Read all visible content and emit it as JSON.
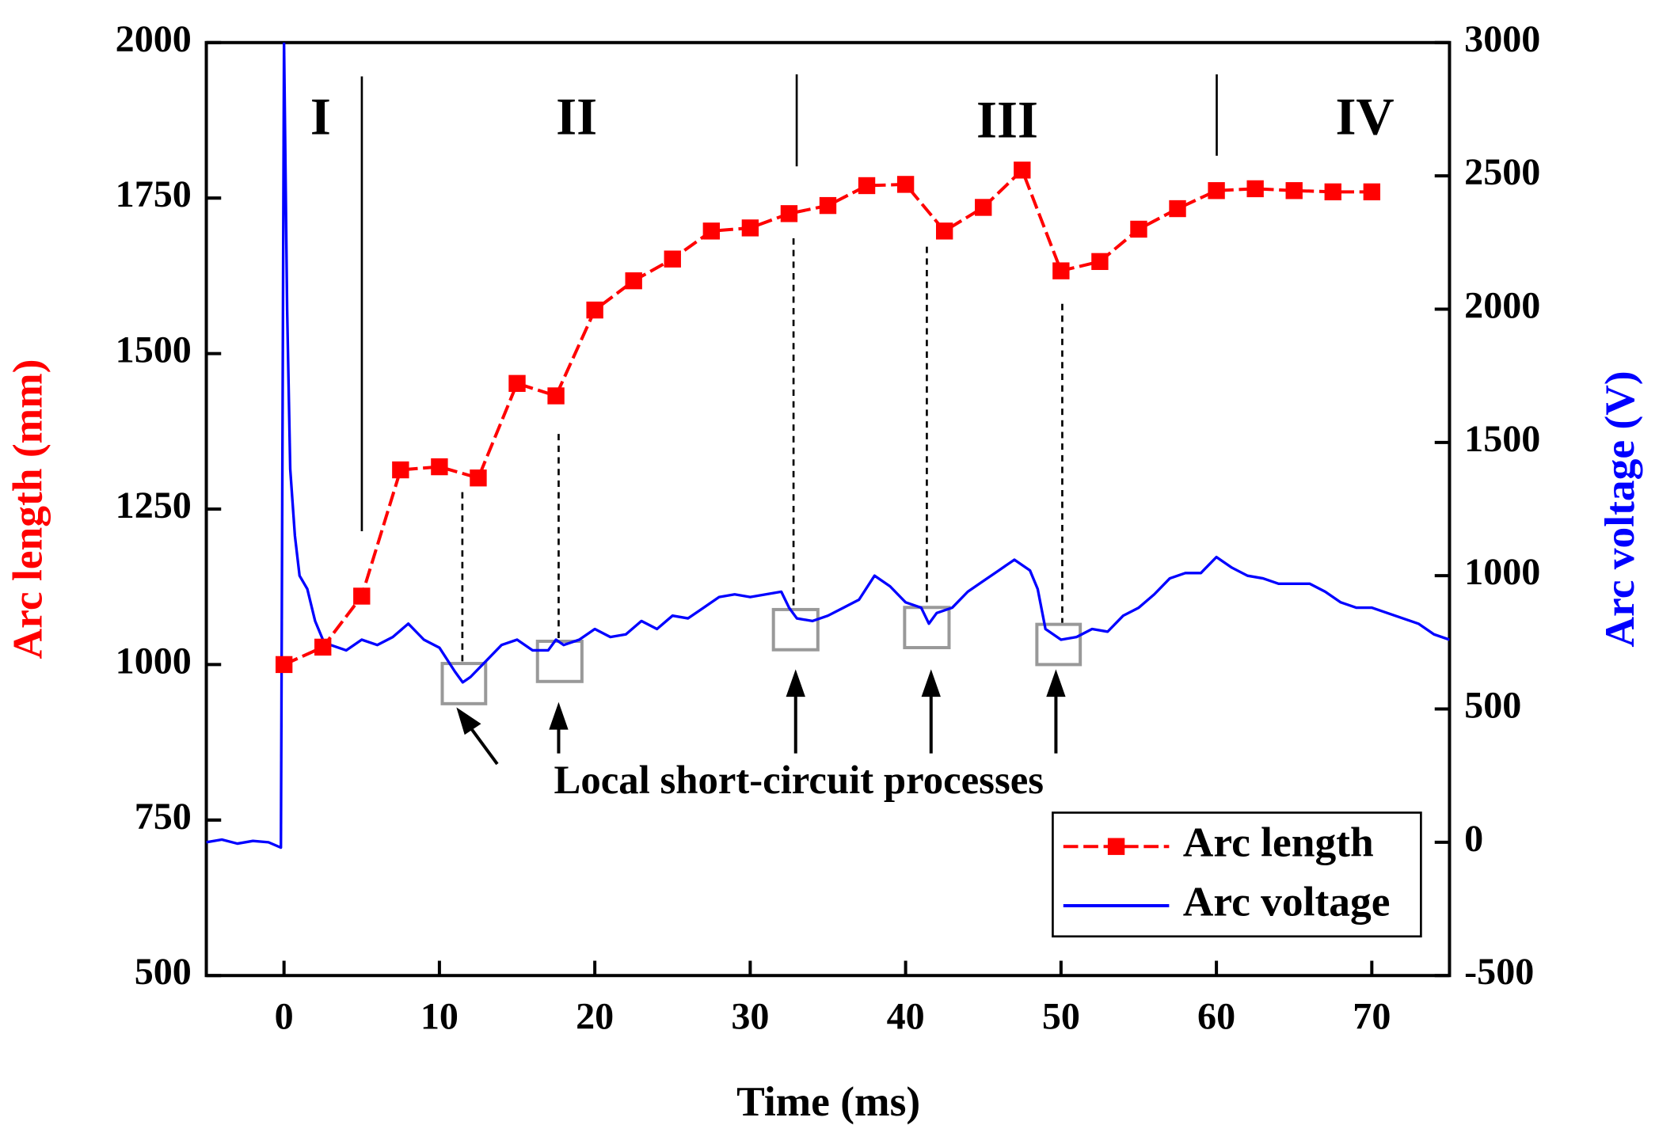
{
  "chart_data": {
    "type": "line",
    "xlabel": "Time (ms)",
    "ylabel": "Arc length (mm)",
    "y2label": "Arc voltage (V)",
    "region_labels": [
      "I",
      "II",
      "III",
      "IV"
    ],
    "annotation": "Local short-circuit processes",
    "xlim": [
      -5,
      75
    ],
    "xticks": [
      0,
      10,
      20,
      30,
      40,
      50,
      60,
      70
    ],
    "ylim": [
      500,
      2000
    ],
    "yticks": [
      500,
      750,
      1000,
      1250,
      1500,
      1750,
      2000
    ],
    "y2lim": [
      -500,
      3000
    ],
    "y2ticks": [
      -500,
      0,
      500,
      1000,
      1500,
      2000,
      2500,
      3000
    ],
    "legend": "lower right",
    "series": [
      {
        "name": "Arc length",
        "color": "#ff0000",
        "marker": "square",
        "x": [
          0,
          2.5,
          5,
          7.5,
          10,
          12.5,
          15,
          17.5,
          20,
          22.5,
          25,
          27.5,
          30,
          32.5,
          35,
          37.5,
          40,
          42.5,
          45,
          47.5,
          50,
          52.5,
          55,
          57.5,
          60,
          62.5,
          65,
          67.5,
          70
        ],
        "values": [
          1000,
          1028,
          1110,
          1313,
          1318,
          1300,
          1452,
          1432,
          1570,
          1617,
          1652,
          1697,
          1702,
          1725,
          1738,
          1770,
          1772,
          1697,
          1735,
          1795,
          1633,
          1648,
          1700,
          1733,
          1762,
          1765,
          1762,
          1760,
          1760
        ]
      },
      {
        "name": "Arc voltage",
        "color": "#0000ff",
        "axis": "y2",
        "x": [
          -5,
          -4,
          -3,
          -2,
          -1,
          -0.2,
          0,
          0.2,
          0.4,
          0.7,
          1,
          1.5,
          2,
          2.5,
          3,
          4,
          5,
          6,
          7,
          8,
          9,
          10,
          11,
          11.5,
          12,
          13,
          14,
          15,
          16,
          17,
          17.5,
          18,
          19,
          20,
          21,
          22,
          23,
          24,
          25,
          26,
          27,
          28,
          29,
          30,
          31,
          32,
          32.5,
          33,
          34,
          35,
          36,
          37,
          38,
          39,
          40,
          41,
          41.5,
          42,
          43,
          44,
          45,
          46,
          47,
          48,
          48.5,
          49,
          50,
          51,
          52,
          53,
          54,
          55,
          56,
          57,
          58,
          59,
          60,
          61,
          62,
          63,
          64,
          65,
          66,
          67,
          68,
          69,
          70,
          71,
          72,
          73,
          74,
          75
        ],
        "values": [
          0,
          10,
          -5,
          5,
          0,
          -20,
          3000,
          2000,
          1400,
          1150,
          1000,
          950,
          830,
          760,
          740,
          720,
          760,
          740,
          770,
          820,
          760,
          730,
          640,
          600,
          620,
          680,
          740,
          760,
          720,
          720,
          760,
          740,
          760,
          800,
          770,
          780,
          830,
          800,
          850,
          840,
          880,
          920,
          930,
          920,
          930,
          940,
          880,
          840,
          830,
          850,
          880,
          910,
          1000,
          960,
          900,
          880,
          820,
          860,
          880,
          940,
          980,
          1020,
          1060,
          1020,
          950,
          800,
          760,
          770,
          800,
          790,
          850,
          880,
          930,
          990,
          1010,
          1010,
          1070,
          1030,
          1000,
          990,
          970,
          970,
          970,
          940,
          900,
          880,
          880,
          860,
          840,
          820,
          780,
          760
        ]
      }
    ]
  }
}
